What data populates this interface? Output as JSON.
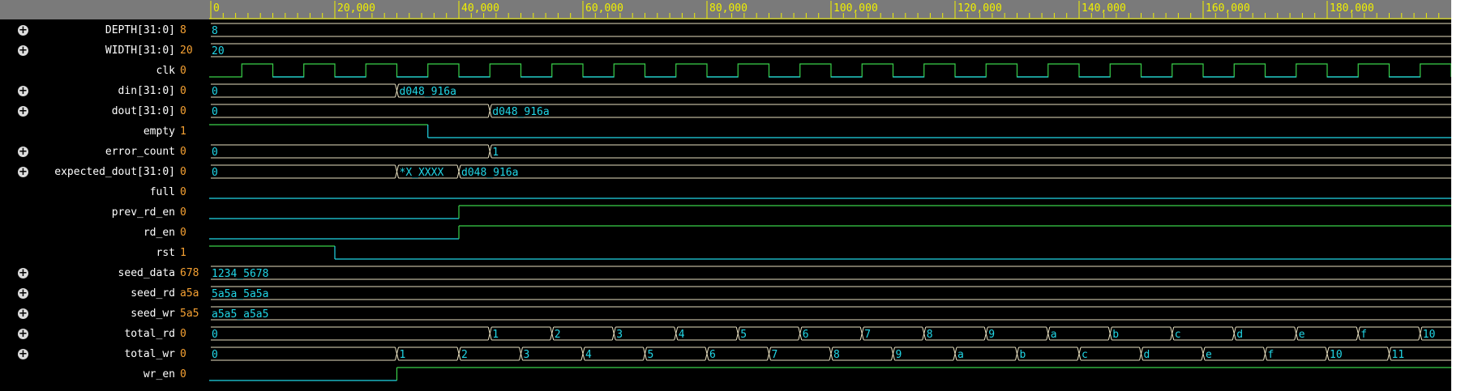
{
  "timeline": {
    "ticks": [
      "0",
      "20,000",
      "40,000",
      "60,000",
      "80,000",
      "100,000",
      "120,000",
      "140,000",
      "160,000",
      "180,000"
    ]
  },
  "signals": [
    {
      "name": "DEPTH[31:0]",
      "value": "8",
      "expandable": true
    },
    {
      "name": "WIDTH[31:0]",
      "value": "20",
      "expandable": true
    },
    {
      "name": "clk",
      "value": "0",
      "expandable": false
    },
    {
      "name": "din[31:0]",
      "value": "0",
      "expandable": true
    },
    {
      "name": "dout[31:0]",
      "value": "0",
      "expandable": true
    },
    {
      "name": "empty",
      "value": "1",
      "expandable": false
    },
    {
      "name": "error_count",
      "value": "0",
      "expandable": true
    },
    {
      "name": "expected_dout[31:0]",
      "value": "0",
      "expandable": true
    },
    {
      "name": "full",
      "value": "0",
      "expandable": false
    },
    {
      "name": "prev_rd_en",
      "value": "0",
      "expandable": false
    },
    {
      "name": "rd_en",
      "value": "0",
      "expandable": false
    },
    {
      "name": "rst",
      "value": "1",
      "expandable": false
    },
    {
      "name": "seed_data",
      "value": "678",
      "expandable": true
    },
    {
      "name": "seed_rd",
      "value": "a5a",
      "expandable": true
    },
    {
      "name": "seed_wr",
      "value": "5a5",
      "expandable": true
    },
    {
      "name": "total_rd",
      "value": "0",
      "expandable": true
    },
    {
      "name": "total_wr",
      "value": "0",
      "expandable": true
    },
    {
      "name": "wr_en",
      "value": "0",
      "expandable": false
    }
  ],
  "waves": {
    "DEPTH[31:0]": {
      "type": "bus",
      "segments": [
        {
          "t": 0,
          "label": "8"
        }
      ]
    },
    "WIDTH[31:0]": {
      "type": "bus",
      "segments": [
        {
          "t": 0,
          "label": "20"
        }
      ]
    },
    "clk": {
      "type": "clock",
      "period": 10000,
      "start_level": 0,
      "first_rise": 5000
    },
    "din[31:0]": {
      "type": "bus",
      "segments": [
        {
          "t": 0,
          "label": "0"
        },
        {
          "t": 30000,
          "label": "d048_916a"
        }
      ]
    },
    "dout[31:0]": {
      "type": "bus",
      "segments": [
        {
          "t": 0,
          "label": "0"
        },
        {
          "t": 45000,
          "label": "d048_916a"
        }
      ]
    },
    "empty": {
      "type": "bit",
      "initial": 1,
      "edges": [
        35000
      ]
    },
    "error_count": {
      "type": "bus",
      "segments": [
        {
          "t": 0,
          "label": "0"
        },
        {
          "t": 45000,
          "label": "1"
        }
      ]
    },
    "expected_dout[31:0]": {
      "type": "bus",
      "segments": [
        {
          "t": 0,
          "label": "0"
        },
        {
          "t": 30000,
          "label": "*X_XXXX"
        },
        {
          "t": 40000,
          "label": "d048_916a"
        }
      ]
    },
    "full": {
      "type": "bit",
      "initial": 0,
      "edges": []
    },
    "prev_rd_en": {
      "type": "bit",
      "initial": 0,
      "edges": [
        40000
      ]
    },
    "rd_en": {
      "type": "bit",
      "initial": 0,
      "edges": [
        40000
      ]
    },
    "rst": {
      "type": "bit",
      "initial": 1,
      "edges": [
        20000
      ]
    },
    "seed_data": {
      "type": "bus",
      "segments": [
        {
          "t": 0,
          "label": "1234_5678"
        }
      ]
    },
    "seed_rd": {
      "type": "bus",
      "segments": [
        {
          "t": 0,
          "label": "5a5a_5a5a"
        }
      ]
    },
    "seed_wr": {
      "type": "bus",
      "segments": [
        {
          "t": 0,
          "label": "a5a5_a5a5"
        }
      ]
    },
    "total_rd": {
      "type": "bus",
      "segments": [
        {
          "t": 0,
          "label": "0"
        },
        {
          "t": 45000,
          "label": "1"
        },
        {
          "t": 55000,
          "label": "2"
        },
        {
          "t": 65000,
          "label": "3"
        },
        {
          "t": 75000,
          "label": "4"
        },
        {
          "t": 85000,
          "label": "5"
        },
        {
          "t": 95000,
          "label": "6"
        },
        {
          "t": 105000,
          "label": "7"
        },
        {
          "t": 115000,
          "label": "8"
        },
        {
          "t": 125000,
          "label": "9"
        },
        {
          "t": 135000,
          "label": "a"
        },
        {
          "t": 145000,
          "label": "b"
        },
        {
          "t": 155000,
          "label": "c"
        },
        {
          "t": 165000,
          "label": "d"
        },
        {
          "t": 175000,
          "label": "e"
        },
        {
          "t": 185000,
          "label": "f"
        },
        {
          "t": 195000,
          "label": "10"
        }
      ]
    },
    "total_wr": {
      "type": "bus",
      "segments": [
        {
          "t": 0,
          "label": "0"
        },
        {
          "t": 30000,
          "label": "1"
        },
        {
          "t": 40000,
          "label": "2"
        },
        {
          "t": 50000,
          "label": "3"
        },
        {
          "t": 60000,
          "label": "4"
        },
        {
          "t": 70000,
          "label": "5"
        },
        {
          "t": 80000,
          "label": "6"
        },
        {
          "t": 90000,
          "label": "7"
        },
        {
          "t": 100000,
          "label": "8"
        },
        {
          "t": 110000,
          "label": "9"
        },
        {
          "t": 120000,
          "label": "a"
        },
        {
          "t": 130000,
          "label": "b"
        },
        {
          "t": 140000,
          "label": "c"
        },
        {
          "t": 150000,
          "label": "d"
        },
        {
          "t": 160000,
          "label": "e"
        },
        {
          "t": 170000,
          "label": "f"
        },
        {
          "t": 180000,
          "label": "10"
        },
        {
          "t": 190000,
          "label": "11"
        }
      ]
    },
    "wr_en": {
      "type": "bit",
      "initial": 0,
      "edges": [
        30000
      ]
    }
  },
  "time_range": [
    0,
    200000
  ],
  "colors": {
    "header_bg": "#7a7a7a",
    "ruler_text": "#f0f000",
    "signal_name": "#ffffff",
    "signal_value": "#f7a233",
    "bus_line": "#e8e0c0",
    "bus_text": "#21d6e6",
    "low_level": "#21d6e6",
    "high_level": "#3ad14a"
  }
}
